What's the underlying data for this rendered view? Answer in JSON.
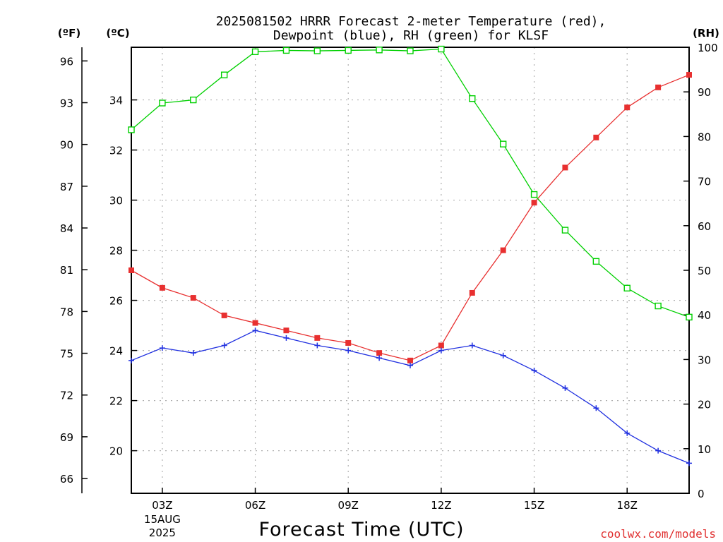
{
  "chart_data": {
    "type": "line",
    "title_lines": [
      "2025081502 HRRR Forecast 2-meter Temperature (red),",
      "Dewpoint (blue), RH (green) for KLSF"
    ],
    "xlabel": "Forecast Time (UTC)",
    "credit": "coolwx.com/models",
    "unit_labels": {
      "fahrenheit": "(ºF)",
      "celsius": "(ºC)",
      "rh": "(RH)"
    },
    "colors": {
      "temperature": "#e83030",
      "dewpoint": "#2030e0",
      "rh": "#00d000",
      "grid": "#b0b0b0"
    },
    "x_hours": [
      2,
      3,
      4,
      5,
      6,
      7,
      8,
      9,
      10,
      11,
      12,
      13,
      14,
      15,
      16,
      17,
      18,
      19,
      20
    ],
    "xlim": [
      2,
      20
    ],
    "x_ticks": [
      {
        "hour": 3,
        "label": "03Z",
        "sub": [
          "15AUG",
          "2025"
        ]
      },
      {
        "hour": 6,
        "label": "06Z"
      },
      {
        "hour": 9,
        "label": "09Z"
      },
      {
        "hour": 12,
        "label": "12Z"
      },
      {
        "hour": 15,
        "label": "15Z"
      },
      {
        "hour": 18,
        "label": "18Z"
      }
    ],
    "celsius_axis": {
      "lim": [
        18.3,
        36.1
      ],
      "ticks": [
        20,
        22,
        24,
        26,
        28,
        30,
        32,
        34
      ]
    },
    "fahrenheit_axis": {
      "ticks": [
        66,
        69,
        72,
        75,
        78,
        81,
        84,
        87,
        90,
        93,
        96
      ]
    },
    "rh_axis": {
      "lim": [
        0,
        100
      ],
      "ticks": [
        0,
        10,
        20,
        30,
        40,
        50,
        60,
        70,
        80,
        90,
        100
      ]
    },
    "grid": true,
    "series": [
      {
        "key": "temperature",
        "axis": "celsius",
        "marker": "filled-square",
        "values": [
          27.2,
          26.5,
          26.1,
          25.4,
          25.1,
          24.8,
          24.5,
          24.3,
          23.9,
          23.6,
          24.2,
          26.3,
          28.0,
          29.9,
          31.3,
          32.5,
          33.7,
          34.5,
          35.0
        ]
      },
      {
        "key": "dewpoint",
        "axis": "celsius",
        "marker": "plus",
        "values": [
          23.6,
          24.1,
          23.9,
          24.2,
          24.8,
          24.5,
          24.2,
          24.0,
          23.7,
          23.4,
          24.0,
          24.2,
          23.8,
          23.2,
          22.5,
          21.7,
          20.7,
          20.0,
          19.5
        ]
      },
      {
        "key": "rh",
        "axis": "rh",
        "marker": "open-square",
        "values": [
          81.5,
          87.5,
          88.2,
          93.8,
          99.0,
          99.3,
          99.2,
          99.3,
          99.4,
          99.2,
          99.6,
          88.5,
          78.3,
          67.0,
          59.0,
          52.0,
          46.0,
          42.0,
          39.5
        ]
      }
    ]
  }
}
